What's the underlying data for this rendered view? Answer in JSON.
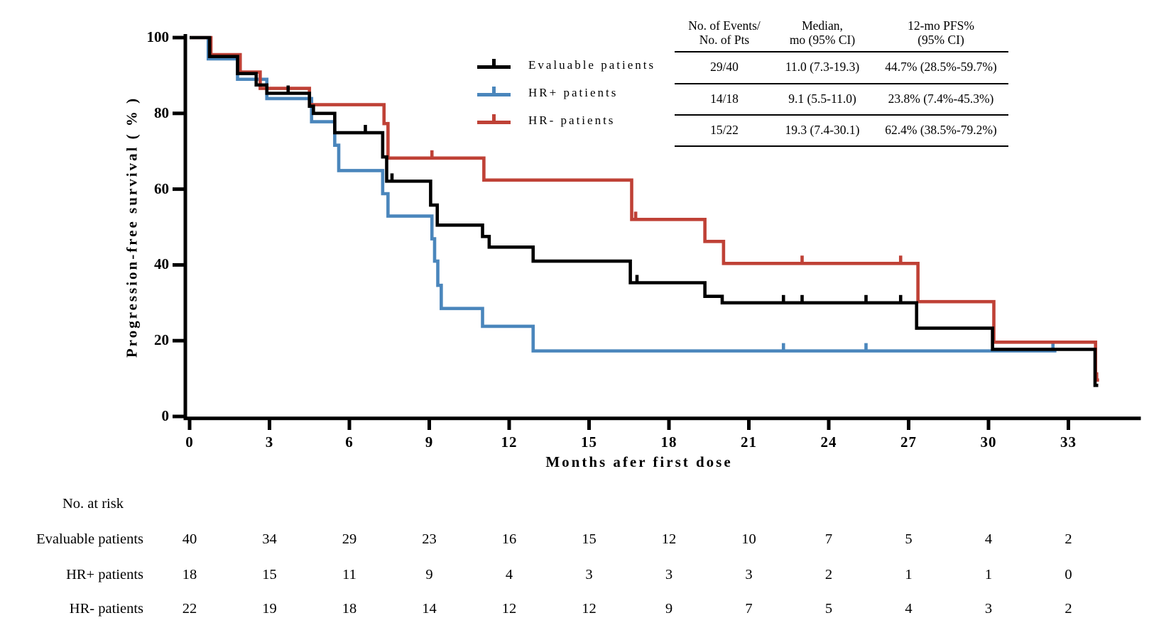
{
  "figure": {
    "x_axis_title": "Months afer first dose",
    "y_axis_title": "Progression-free survival ( % )"
  },
  "chart_data": {
    "type": "line",
    "subtype": "kaplan-meier-step",
    "title": "",
    "xlabel": "Months afer first dose",
    "ylabel": "Progression-free survival ( % )",
    "xlim": [
      0,
      35.6
    ],
    "ylim": [
      0,
      100
    ],
    "xticks": [
      0,
      3,
      6,
      9,
      12,
      15,
      18,
      21,
      24,
      27,
      30,
      33
    ],
    "yticks": [
      0,
      20,
      40,
      60,
      80,
      100
    ],
    "grid": false,
    "legend_position": "upper-center-left",
    "series": [
      {
        "name": "HR+ patients",
        "color": "#4A86BC",
        "start": [
          0,
          100
        ],
        "steps": [
          [
            0.7,
            94.4
          ],
          [
            1.8,
            89
          ],
          [
            2.9,
            83.9
          ],
          [
            4.58,
            77.8
          ],
          [
            5.45,
            71.6
          ],
          [
            5.6,
            64.9
          ],
          [
            7.25,
            58.8
          ],
          [
            7.45,
            52.9
          ],
          [
            9.1,
            46.9
          ],
          [
            9.2,
            41
          ],
          [
            9.32,
            34.6
          ],
          [
            9.45,
            28.5
          ],
          [
            11,
            23.8
          ],
          [
            12.9,
            17.3
          ]
        ],
        "end": 32.55,
        "censors": [
          [
            22.3,
            17.3
          ],
          [
            25.4,
            17.3
          ],
          [
            32.42,
            17.3
          ]
        ]
      },
      {
        "name": "HR- patients",
        "color": "#BF4136",
        "start": [
          0,
          100
        ],
        "steps": [
          [
            0.8,
            95.5
          ],
          [
            1.9,
            90.9
          ],
          [
            2.65,
            86.6
          ],
          [
            4.5,
            82.3
          ],
          [
            7.3,
            77.3
          ],
          [
            7.45,
            68.2
          ],
          [
            11.05,
            62.4
          ],
          [
            16.6,
            52
          ],
          [
            19.35,
            46.2
          ],
          [
            20.05,
            40.4
          ],
          [
            27.35,
            30.3
          ],
          [
            30.2,
            19.6
          ],
          [
            34.02,
            9.6
          ]
        ],
        "end": 34.15,
        "censors": [
          [
            9.1,
            68.2
          ],
          [
            16.75,
            52
          ],
          [
            23,
            40.4
          ],
          [
            26.7,
            40.4
          ],
          [
            34.06,
            9.6
          ]
        ]
      },
      {
        "name": "Evaluable patients",
        "color": "#000000",
        "start": [
          0,
          100
        ],
        "steps": [
          [
            0.75,
            95
          ],
          [
            1.8,
            90.5
          ],
          [
            2.5,
            87.5
          ],
          [
            2.9,
            85.3
          ],
          [
            4.5,
            81.9
          ],
          [
            4.65,
            80
          ],
          [
            5.45,
            74.9
          ],
          [
            7.25,
            68.5
          ],
          [
            7.4,
            62.1
          ],
          [
            9.05,
            55.8
          ],
          [
            9.3,
            50.5
          ],
          [
            11,
            47.5
          ],
          [
            11.25,
            44.7
          ],
          [
            12.9,
            41
          ],
          [
            16.55,
            35.3
          ],
          [
            19.35,
            31.7
          ],
          [
            20,
            30
          ],
          [
            27.3,
            23.3
          ],
          [
            30.15,
            17.7
          ],
          [
            34,
            8.2
          ]
        ],
        "end": 34.12,
        "censors": [
          [
            3.7,
            85.3
          ],
          [
            6.6,
            74.9
          ],
          [
            7.6,
            62.1
          ],
          [
            16.8,
            35.3
          ],
          [
            22.3,
            30
          ],
          [
            23,
            30
          ],
          [
            25.4,
            30
          ],
          [
            26.7,
            30
          ]
        ]
      }
    ]
  },
  "legend": {
    "items": [
      {
        "label": "Evaluable patients",
        "color": "#000000"
      },
      {
        "label": "HR+ patients",
        "color": "#4A86BC"
      },
      {
        "label": "HR- patients",
        "color": "#BF4136"
      }
    ]
  },
  "stats_table": {
    "headers": [
      [
        "No. of Events/",
        "No. of Pts"
      ],
      [
        "Median,",
        "mo (95% CI)"
      ],
      [
        "12-mo PFS%",
        "(95% CI)"
      ]
    ],
    "rows": [
      [
        "29/40",
        "11.0 (7.3-19.3)",
        "44.7% (28.5%-59.7%)"
      ],
      [
        "14/18",
        "9.1 (5.5-11.0)",
        "23.8% (7.4%-45.3%)"
      ],
      [
        "15/22",
        "19.3 (7.4-30.1)",
        "62.4% (38.5%-79.2%)"
      ]
    ]
  },
  "risk_table": {
    "title": "No. at risk",
    "months": [
      0,
      3,
      6,
      9,
      12,
      15,
      18,
      21,
      24,
      27,
      30,
      33
    ],
    "rows": [
      {
        "label": "Evaluable patients",
        "values": [
          40,
          34,
          29,
          23,
          16,
          15,
          12,
          10,
          7,
          5,
          4,
          2
        ]
      },
      {
        "label": "HR+ patients",
        "values": [
          18,
          15,
          11,
          9,
          4,
          3,
          3,
          3,
          2,
          1,
          1,
          0
        ]
      },
      {
        "label": "HR- patients",
        "values": [
          22,
          19,
          18,
          14,
          12,
          12,
          9,
          7,
          5,
          4,
          3,
          2
        ]
      }
    ]
  }
}
